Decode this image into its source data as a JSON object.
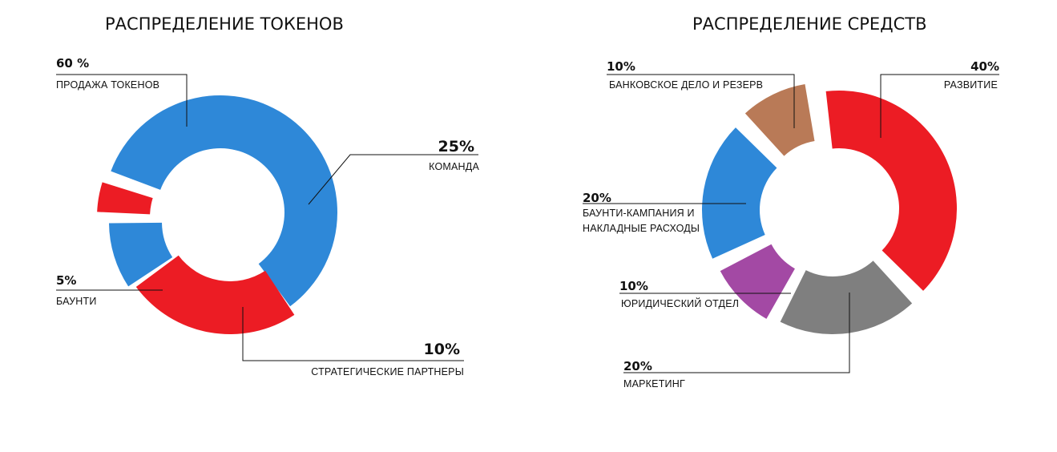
{
  "chart_data": [
    {
      "type": "pie",
      "title": "РАСПРЕДЕЛЕНИЕ ТОКЕНОВ",
      "slices": [
        {
          "name": "ПРОДАЖА ТОКЕНОВ",
          "label": "60 %",
          "value": 60,
          "color": "#2e88d8"
        },
        {
          "name": "КОМАНДА",
          "label": "25%",
          "value": 25,
          "color": "#ec1c24"
        },
        {
          "name": "СТРАТЕГИЧЕСКИЕ ПАРТНЕРЫ",
          "label": "10%",
          "value": 10,
          "color": "#2e88d8"
        },
        {
          "name": "БАУНТИ",
          "label": "5%",
          "value": 5,
          "color": "#ec1c24"
        }
      ]
    },
    {
      "type": "pie",
      "title": "РАСПРЕДЕЛЕНИЕ СРЕДСТВ",
      "slices": [
        {
          "name": "РАЗВИТИЕ",
          "label": "40%",
          "value": 40,
          "color": "#ec1c24"
        },
        {
          "name": "МАРКЕТИНГ",
          "label": "20%",
          "value": 20,
          "color": "#7f7f7f"
        },
        {
          "name": "ЮРИДИЧЕСКИЙ ОТДЕЛ",
          "label": "10%",
          "value": 10,
          "color": "#a349a4"
        },
        {
          "name": "БАУНТИ-КАМПАНИЯ И НАКЛАДНЫЕ РАСХОДЫ",
          "label": "20%",
          "value": 20,
          "color": "#2e88d8"
        },
        {
          "name": "БАНКОВСКОЕ ДЕЛО И РЕЗЕРВ",
          "label": "10%",
          "value": 10,
          "color": "#b97a57"
        }
      ]
    }
  ]
}
